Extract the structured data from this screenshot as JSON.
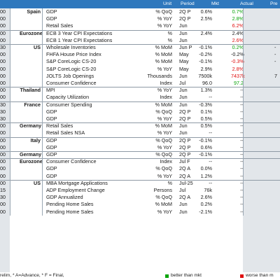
{
  "header": {
    "unit": "Unit",
    "period": "Period",
    "mkt": "Mkt",
    "actual": "Actual",
    "prior": "Pre"
  },
  "colors": {
    "header_bg": "#2f78bd",
    "better": "#0aa40a",
    "worse": "#e01010"
  },
  "rows": [
    {
      "time": "00",
      "country": "Spain",
      "event": "GDP",
      "unit": "% QoQ",
      "period": "2Q P",
      "mkt": "0.6%",
      "actual": "0.7%",
      "status": "good",
      "prior": ""
    },
    {
      "time": "00",
      "country": "",
      "event": "GDP",
      "unit": "% YoY",
      "period": "2Q P",
      "mkt": "2.5%",
      "actual": "2.8%",
      "status": "good",
      "prior": ""
    },
    {
      "time": "00",
      "country": "",
      "event": "Retail Sales",
      "unit": "% YoY",
      "period": "Jun",
      "mkt": "",
      "actual": "6.2%",
      "status": "bad",
      "prior": ""
    },
    {
      "time": "00",
      "country": "Eurozone",
      "event": "ECB 3 Year CPI Expectations",
      "unit": "%",
      "period": "Jun",
      "mkt": "2.4%",
      "actual": "2.4%",
      "status": "",
      "prior": ""
    },
    {
      "time": "00",
      "country": "",
      "event": "ECB 1 Year CPI Expectations",
      "unit": "%",
      "period": "Jun",
      "mkt": "",
      "actual": "2.6%",
      "status": "bad",
      "prior": ""
    },
    {
      "time": "30",
      "country": "US",
      "event": "Wholesale Inventories",
      "unit": "% MoM",
      "period": "Jun P",
      "mkt": "-0.1%",
      "actual": "0.2%",
      "status": "good",
      "prior": "-"
    },
    {
      "time": "00",
      "country": "",
      "event": "FHFA House Price Index",
      "unit": "% MoM",
      "period": "May",
      "mkt": "-0.2%",
      "actual": "-0.2%",
      "status": "",
      "prior": "-"
    },
    {
      "time": "00",
      "country": "",
      "event": "S&P CoreLogic CS-20",
      "unit": "% MoM",
      "period": "May",
      "mkt": "-0.1%",
      "actual": "-0.3%",
      "status": "bad",
      "prior": "-"
    },
    {
      "time": "00",
      "country": "",
      "event": "S&P CoreLogic CS-20",
      "unit": "% YoY",
      "period": "May",
      "mkt": "2.9%",
      "actual": "2.8%",
      "status": "bad",
      "prior": ""
    },
    {
      "time": "00",
      "country": "",
      "event": "JOLTS Job Openings",
      "unit": "Thousands",
      "period": "Jun",
      "mkt": "7500k",
      "actual": "7437k",
      "status": "bad",
      "prior": "7"
    },
    {
      "time": "00",
      "country": "",
      "event": "Consumer Confidence",
      "unit": "Index",
      "period": "Jul",
      "mkt": "96.0",
      "actual": "97.2",
      "status": "good",
      "prior": ""
    },
    {
      "time": "00",
      "country": "Thailand",
      "event": "MPI",
      "unit": "% YoY",
      "period": "Jun",
      "mkt": "1.3%",
      "actual": "--",
      "status": "",
      "prior": ""
    },
    {
      "time": "00",
      "country": "",
      "event": "Capacity Utilization",
      "unit": "Index",
      "period": "Jun",
      "mkt": "--",
      "actual": "--",
      "status": "",
      "prior": ""
    },
    {
      "time": "30",
      "country": "France",
      "event": "Consumer Spending",
      "unit": "% MoM",
      "period": "Jun",
      "mkt": "-0.3%",
      "actual": "--",
      "status": "",
      "prior": ""
    },
    {
      "time": "30",
      "country": "",
      "event": "GDP",
      "unit": "% QoQ",
      "period": "2Q P",
      "mkt": "0.1%",
      "actual": "--",
      "status": "",
      "prior": ""
    },
    {
      "time": "30",
      "country": "",
      "event": "GDP",
      "unit": "% YoY",
      "period": "2Q P",
      "mkt": "0.5%",
      "actual": "--",
      "status": "",
      "prior": ""
    },
    {
      "time": "00",
      "country": "Germany",
      "event": "Retail Sales",
      "unit": "% MoM",
      "period": "Jun",
      "mkt": "0.5%",
      "actual": "--",
      "status": "",
      "prior": ""
    },
    {
      "time": "00",
      "country": "",
      "event": "Retail Sales NSA",
      "unit": "% YoY",
      "period": "Jun",
      "mkt": "--",
      "actual": "--",
      "status": "",
      "prior": ""
    },
    {
      "time": "00",
      "country": "Italy",
      "event": "GDP",
      "unit": "% QoQ",
      "period": "2Q P",
      "mkt": "-0.1%",
      "actual": "--",
      "status": "",
      "prior": ""
    },
    {
      "time": "00",
      "country": "",
      "event": "GDP",
      "unit": "% YoY",
      "period": "2Q P",
      "mkt": "0.6%",
      "actual": "--",
      "status": "",
      "prior": ""
    },
    {
      "time": "00",
      "country": "Germany",
      "event": "GDP",
      "unit": "% QoQ",
      "period": "2Q P",
      "mkt": "-0.1%",
      "actual": "--",
      "status": "",
      "prior": ""
    },
    {
      "time": "00",
      "country": "Eurozone",
      "event": "Consumer Confidence",
      "unit": "Index",
      "period": "Jul F",
      "mkt": "--",
      "actual": "--",
      "status": "",
      "prior": ""
    },
    {
      "time": "00",
      "country": "",
      "event": "GDP",
      "unit": "% QoQ",
      "period": "2Q A",
      "mkt": "0.0%",
      "actual": "--",
      "status": "",
      "prior": ""
    },
    {
      "time": "00",
      "country": "",
      "event": "GDP",
      "unit": "% YoY",
      "period": "2Q A",
      "mkt": "1.2%",
      "actual": "--",
      "status": "",
      "prior": ""
    },
    {
      "time": "00",
      "country": "US",
      "event": "MBA Mortgage Applications",
      "unit": "%",
      "period": "Jul-25",
      "mkt": "--",
      "actual": "--",
      "status": "",
      "prior": ""
    },
    {
      "time": "15",
      "country": "",
      "event": "ADP Employment Change",
      "unit": "Persons",
      "period": "Jul",
      "mkt": "76k",
      "actual": "--",
      "status": "",
      "prior": ""
    },
    {
      "time": "30",
      "country": "",
      "event": "GDP Annualized",
      "unit": "% QoQ",
      "period": "2Q A",
      "mkt": "2.6%",
      "actual": "--",
      "status": "",
      "prior": ""
    },
    {
      "time": "00",
      "country": "",
      "event": "Pending Home Sales",
      "unit": "% MoM",
      "period": "Jun",
      "mkt": "0.2%",
      "actual": "--",
      "status": "",
      "prior": ""
    },
    {
      "time": "00",
      "country": "",
      "event": "Pending Home Sales",
      "unit": "% YoY",
      "period": "Jun",
      "mkt": "-2.1%",
      "actual": "--",
      "status": "",
      "prior": ""
    }
  ],
  "footer": {
    "note": "relim, * A=Advance, * F = Final,",
    "better_label": "better than mkt",
    "worse_label": "worse than m"
  }
}
